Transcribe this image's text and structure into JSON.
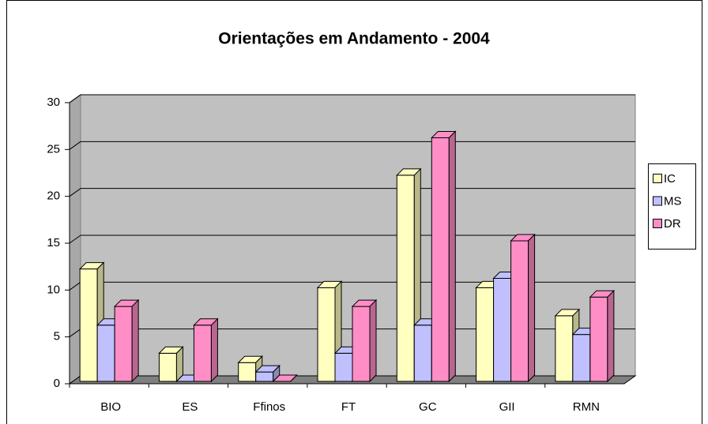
{
  "chart_data": {
    "type": "bar",
    "title": "Orientações em Andamento - 2004",
    "categories": [
      "BIO",
      "ES",
      "Ffinos",
      "FT",
      "GC",
      "GII",
      "RMN"
    ],
    "series": [
      {
        "name": "IC",
        "color": "#ffffc0",
        "values": [
          12,
          3,
          2,
          10,
          22,
          10,
          7
        ]
      },
      {
        "name": "MS",
        "color": "#c0c0ff",
        "values": [
          6,
          0,
          1,
          3,
          6,
          11,
          5
        ]
      },
      {
        "name": "DR",
        "color": "#ff8ec6",
        "values": [
          8,
          6,
          0,
          8,
          26,
          15,
          9
        ]
      }
    ],
    "ylim": [
      0,
      30
    ],
    "yticks": [
      0,
      5,
      10,
      15,
      20,
      25,
      30
    ],
    "grid": true,
    "legend": "right"
  }
}
